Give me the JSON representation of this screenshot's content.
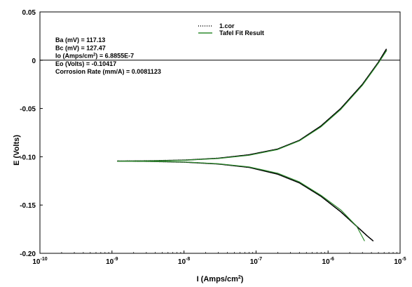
{
  "chart_data": {
    "type": "line",
    "xlabel": "I (Amps/cm",
    "xlabel_sup": "2",
    "xlabel_close": ")",
    "ylabel": "E (Volts)",
    "xscale": "log",
    "xlim": [
      1e-10,
      1e-05
    ],
    "ylim": [
      -0.2,
      0.05
    ],
    "x_ticks": [
      {
        "base": "10",
        "exp": "-10",
        "value": 1e-10
      },
      {
        "base": "10",
        "exp": "-9",
        "value": 1e-09
      },
      {
        "base": "10",
        "exp": "-8",
        "value": 1e-08
      },
      {
        "base": "10",
        "exp": "-7",
        "value": 1e-07
      },
      {
        "base": "10",
        "exp": "-6",
        "value": 1e-06
      },
      {
        "base": "10",
        "exp": "-5",
        "value": 1e-05
      }
    ],
    "y_ticks": [
      {
        "label": "0.05",
        "value": 0.05
      },
      {
        "label": "0",
        "value": 0
      },
      {
        "label": "-0.05",
        "value": -0.05
      },
      {
        "label": "-0.10",
        "value": -0.1
      },
      {
        "label": "-0.15",
        "value": -0.15
      },
      {
        "label": "-0.20",
        "value": -0.2
      }
    ],
    "reference_line_y": 0,
    "grid": false,
    "legend_position": "top-center",
    "series": [
      {
        "name": "1.cor",
        "color": "#000000",
        "style": "dotted",
        "branches": [
          {
            "x": [
              1.2e-09,
              3e-09,
              1e-08,
              3e-08,
              8e-08,
              2e-07,
              4e-07,
              8e-07,
              1.5e-06,
              3e-06,
              5e-06,
              6.5e-06
            ],
            "y": [
              -0.1045,
              -0.1042,
              -0.1035,
              -0.1015,
              -0.098,
              -0.092,
              -0.083,
              -0.068,
              -0.05,
              -0.025,
              -0.002,
              0.012
            ]
          },
          {
            "x": [
              1.2e-09,
              3e-09,
              1e-08,
              3e-08,
              8e-08,
              2e-07,
              4e-07,
              8e-07,
              1.5e-06,
              2.5e-06,
              3.5e-06,
              4.2e-06
            ],
            "y": [
              -0.1045,
              -0.1047,
              -0.1055,
              -0.1075,
              -0.111,
              -0.118,
              -0.127,
              -0.141,
              -0.157,
              -0.172,
              -0.182,
              -0.187
            ]
          }
        ]
      },
      {
        "name": "Tafel Fit Result",
        "color": "#2e8b2e",
        "style": "solid",
        "branches": [
          {
            "x": [
              1.2e-09,
              3e-09,
              1e-08,
              3e-08,
              8e-08,
              2e-07,
              4e-07,
              8e-07,
              1.5e-06,
              3e-06,
              5e-06,
              6.5e-06
            ],
            "y": [
              -0.1045,
              -0.1043,
              -0.1036,
              -0.1018,
              -0.0985,
              -0.0925,
              -0.0835,
              -0.069,
              -0.051,
              -0.026,
              -0.003,
              0.01
            ]
          },
          {
            "x": [
              1.2e-09,
              3e-09,
              1e-08,
              3e-08,
              8e-08,
              2e-07,
              4e-07,
              8e-07,
              1.5e-06,
              2.5e-06,
              3.2e-06
            ],
            "y": [
              -0.1045,
              -0.1047,
              -0.1054,
              -0.1073,
              -0.1105,
              -0.117,
              -0.126,
              -0.14,
              -0.155,
              -0.172,
              -0.187
            ]
          }
        ]
      }
    ],
    "annotations": [
      {
        "label": "Ba (mV)",
        "value": "117.13"
      },
      {
        "label": "Bc (mV)",
        "value": "127.47"
      },
      {
        "label": "Io (Amps/cm",
        "sup": "2",
        "label_close": ")",
        "value": "6.8855E-7"
      },
      {
        "label": "Eo (Volts)",
        "value": "-0.10417"
      },
      {
        "label": "Corrosion Rate (mm/A)",
        "value": "0.0081123"
      }
    ]
  }
}
